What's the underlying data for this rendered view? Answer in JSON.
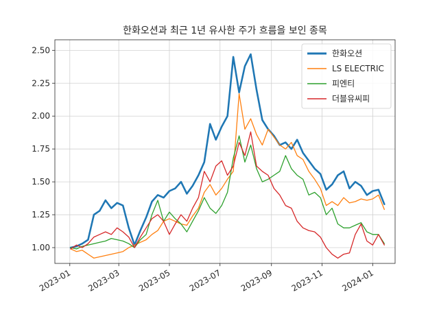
{
  "chart_data": {
    "type": "line",
    "title": "한화오션과 최근 1년 유사한 주가 흐름을 보인 종목",
    "xlabel": "",
    "ylabel": "",
    "x_ticks": [
      "2023-01",
      "2023-03",
      "2023-05",
      "2023-07",
      "2023-09",
      "2023-11",
      "2024-01"
    ],
    "y_ticks": [
      "1.00",
      "1.25",
      "1.50",
      "1.75",
      "2.00",
      "2.25",
      "2.50"
    ],
    "xlim": [
      "2022-12-14",
      "2024-01-28"
    ],
    "ylim": [
      0.88,
      2.58
    ],
    "grid": true,
    "legend_position": "top-right",
    "series": [
      {
        "name": "한화오션",
        "color": "#1f77b4",
        "linewidth": 2,
        "points": [
          [
            "2023-01-02",
            1.0
          ],
          [
            "2023-01-09",
            1.01
          ],
          [
            "2023-01-16",
            1.03
          ],
          [
            "2023-01-23",
            1.06
          ],
          [
            "2023-01-30",
            1.25
          ],
          [
            "2023-02-06",
            1.28
          ],
          [
            "2023-02-13",
            1.36
          ],
          [
            "2023-02-20",
            1.3
          ],
          [
            "2023-02-27",
            1.34
          ],
          [
            "2023-03-06",
            1.32
          ],
          [
            "2023-03-13",
            1.15
          ],
          [
            "2023-03-20",
            1.02
          ],
          [
            "2023-03-27",
            1.13
          ],
          [
            "2023-04-03",
            1.23
          ],
          [
            "2023-04-10",
            1.35
          ],
          [
            "2023-04-17",
            1.4
          ],
          [
            "2023-04-24",
            1.38
          ],
          [
            "2023-05-01",
            1.43
          ],
          [
            "2023-05-08",
            1.45
          ],
          [
            "2023-05-15",
            1.5
          ],
          [
            "2023-05-22",
            1.41
          ],
          [
            "2023-05-29",
            1.47
          ],
          [
            "2023-06-05",
            1.55
          ],
          [
            "2023-06-12",
            1.65
          ],
          [
            "2023-06-19",
            1.94
          ],
          [
            "2023-06-26",
            1.82
          ],
          [
            "2023-07-03",
            1.92
          ],
          [
            "2023-07-10",
            2.0
          ],
          [
            "2023-07-17",
            2.45
          ],
          [
            "2023-07-24",
            2.18
          ],
          [
            "2023-07-31",
            2.38
          ],
          [
            "2023-08-07",
            2.47
          ],
          [
            "2023-08-14",
            2.2
          ],
          [
            "2023-08-21",
            1.97
          ],
          [
            "2023-08-28",
            1.9
          ],
          [
            "2023-09-04",
            1.85
          ],
          [
            "2023-09-11",
            1.78
          ],
          [
            "2023-09-18",
            1.8
          ],
          [
            "2023-09-25",
            1.75
          ],
          [
            "2023-10-02",
            1.82
          ],
          [
            "2023-10-09",
            1.72
          ],
          [
            "2023-10-16",
            1.66
          ],
          [
            "2023-10-23",
            1.6
          ],
          [
            "2023-10-30",
            1.56
          ],
          [
            "2023-11-06",
            1.44
          ],
          [
            "2023-11-13",
            1.48
          ],
          [
            "2023-11-20",
            1.55
          ],
          [
            "2023-11-27",
            1.58
          ],
          [
            "2023-12-04",
            1.45
          ],
          [
            "2023-12-11",
            1.5
          ],
          [
            "2023-12-18",
            1.47
          ],
          [
            "2023-12-25",
            1.4
          ],
          [
            "2024-01-01",
            1.43
          ],
          [
            "2024-01-08",
            1.44
          ],
          [
            "2024-01-15",
            1.33
          ]
        ]
      },
      {
        "name": "LS ELECTRIC",
        "color": "#ff7f0e",
        "linewidth": 1,
        "points": [
          [
            "2023-01-02",
            0.99
          ],
          [
            "2023-01-09",
            0.97
          ],
          [
            "2023-01-16",
            0.98
          ],
          [
            "2023-01-23",
            0.95
          ],
          [
            "2023-01-30",
            0.92
          ],
          [
            "2023-02-06",
            0.93
          ],
          [
            "2023-02-13",
            0.94
          ],
          [
            "2023-02-20",
            0.95
          ],
          [
            "2023-02-27",
            0.96
          ],
          [
            "2023-03-06",
            0.97
          ],
          [
            "2023-03-13",
            1.0
          ],
          [
            "2023-03-20",
            1.02
          ],
          [
            "2023-03-27",
            1.04
          ],
          [
            "2023-04-03",
            1.06
          ],
          [
            "2023-04-10",
            1.1
          ],
          [
            "2023-04-17",
            1.13
          ],
          [
            "2023-04-24",
            1.2
          ],
          [
            "2023-05-01",
            1.22
          ],
          [
            "2023-05-08",
            1.2
          ],
          [
            "2023-05-15",
            1.18
          ],
          [
            "2023-05-22",
            1.17
          ],
          [
            "2023-05-29",
            1.24
          ],
          [
            "2023-06-05",
            1.3
          ],
          [
            "2023-06-12",
            1.42
          ],
          [
            "2023-06-19",
            1.48
          ],
          [
            "2023-06-26",
            1.4
          ],
          [
            "2023-07-03",
            1.45
          ],
          [
            "2023-07-10",
            1.52
          ],
          [
            "2023-07-17",
            1.58
          ],
          [
            "2023-07-24",
            2.17
          ],
          [
            "2023-07-31",
            1.9
          ],
          [
            "2023-08-07",
            1.98
          ],
          [
            "2023-08-14",
            1.86
          ],
          [
            "2023-08-21",
            1.78
          ],
          [
            "2023-08-28",
            1.9
          ],
          [
            "2023-09-04",
            1.84
          ],
          [
            "2023-09-11",
            1.78
          ],
          [
            "2023-09-18",
            1.75
          ],
          [
            "2023-09-25",
            1.8
          ],
          [
            "2023-10-02",
            1.7
          ],
          [
            "2023-10-09",
            1.67
          ],
          [
            "2023-10-16",
            1.58
          ],
          [
            "2023-10-23",
            1.52
          ],
          [
            "2023-10-30",
            1.45
          ],
          [
            "2023-11-06",
            1.32
          ],
          [
            "2023-11-13",
            1.35
          ],
          [
            "2023-11-20",
            1.32
          ],
          [
            "2023-11-27",
            1.38
          ],
          [
            "2023-12-04",
            1.34
          ],
          [
            "2023-12-11",
            1.35
          ],
          [
            "2023-12-18",
            1.37
          ],
          [
            "2023-12-25",
            1.36
          ],
          [
            "2024-01-01",
            1.37
          ],
          [
            "2024-01-08",
            1.4
          ],
          [
            "2024-01-15",
            1.29
          ]
        ]
      },
      {
        "name": "피엔티",
        "color": "#2ca02c",
        "linewidth": 1,
        "points": [
          [
            "2023-01-02",
            1.0
          ],
          [
            "2023-01-09",
            0.99
          ],
          [
            "2023-01-16",
            1.01
          ],
          [
            "2023-01-23",
            1.02
          ],
          [
            "2023-01-30",
            1.03
          ],
          [
            "2023-02-06",
            1.04
          ],
          [
            "2023-02-13",
            1.05
          ],
          [
            "2023-02-20",
            1.07
          ],
          [
            "2023-02-27",
            1.06
          ],
          [
            "2023-03-06",
            1.05
          ],
          [
            "2023-03-13",
            1.03
          ],
          [
            "2023-03-20",
            1.0
          ],
          [
            "2023-03-27",
            1.06
          ],
          [
            "2023-04-03",
            1.1
          ],
          [
            "2023-04-10",
            1.25
          ],
          [
            "2023-04-17",
            1.36
          ],
          [
            "2023-04-24",
            1.2
          ],
          [
            "2023-05-01",
            1.27
          ],
          [
            "2023-05-08",
            1.22
          ],
          [
            "2023-05-15",
            1.18
          ],
          [
            "2023-05-22",
            1.12
          ],
          [
            "2023-05-29",
            1.2
          ],
          [
            "2023-06-05",
            1.28
          ],
          [
            "2023-06-12",
            1.38
          ],
          [
            "2023-06-19",
            1.3
          ],
          [
            "2023-06-26",
            1.26
          ],
          [
            "2023-07-03",
            1.32
          ],
          [
            "2023-07-10",
            1.42
          ],
          [
            "2023-07-17",
            1.68
          ],
          [
            "2023-07-24",
            1.85
          ],
          [
            "2023-07-31",
            1.65
          ],
          [
            "2023-08-07",
            1.78
          ],
          [
            "2023-08-14",
            1.6
          ],
          [
            "2023-08-21",
            1.5
          ],
          [
            "2023-08-28",
            1.52
          ],
          [
            "2023-09-04",
            1.55
          ],
          [
            "2023-09-11",
            1.58
          ],
          [
            "2023-09-18",
            1.7
          ],
          [
            "2023-09-25",
            1.6
          ],
          [
            "2023-10-02",
            1.55
          ],
          [
            "2023-10-09",
            1.52
          ],
          [
            "2023-10-16",
            1.4
          ],
          [
            "2023-10-23",
            1.42
          ],
          [
            "2023-10-30",
            1.38
          ],
          [
            "2023-11-06",
            1.25
          ],
          [
            "2023-11-13",
            1.3
          ],
          [
            "2023-11-20",
            1.18
          ],
          [
            "2023-11-27",
            1.15
          ],
          [
            "2023-12-04",
            1.15
          ],
          [
            "2023-12-11",
            1.17
          ],
          [
            "2023-12-18",
            1.19
          ],
          [
            "2023-12-25",
            1.12
          ],
          [
            "2024-01-01",
            1.1
          ],
          [
            "2024-01-08",
            1.1
          ],
          [
            "2024-01-15",
            1.03
          ]
        ]
      },
      {
        "name": "더블유씨피",
        "color": "#d62728",
        "linewidth": 1,
        "points": [
          [
            "2023-01-02",
            0.99
          ],
          [
            "2023-01-09",
            1.02
          ],
          [
            "2023-01-16",
            1.0
          ],
          [
            "2023-01-23",
            1.03
          ],
          [
            "2023-01-30",
            1.08
          ],
          [
            "2023-02-06",
            1.1
          ],
          [
            "2023-02-13",
            1.12
          ],
          [
            "2023-02-20",
            1.1
          ],
          [
            "2023-02-27",
            1.15
          ],
          [
            "2023-03-06",
            1.12
          ],
          [
            "2023-03-13",
            1.08
          ],
          [
            "2023-03-20",
            1.0
          ],
          [
            "2023-03-27",
            1.08
          ],
          [
            "2023-04-03",
            1.15
          ],
          [
            "2023-04-10",
            1.22
          ],
          [
            "2023-04-17",
            1.25
          ],
          [
            "2023-04-24",
            1.2
          ],
          [
            "2023-05-01",
            1.1
          ],
          [
            "2023-05-08",
            1.18
          ],
          [
            "2023-05-15",
            1.25
          ],
          [
            "2023-05-22",
            1.2
          ],
          [
            "2023-05-29",
            1.3
          ],
          [
            "2023-06-05",
            1.38
          ],
          [
            "2023-06-12",
            1.58
          ],
          [
            "2023-06-19",
            1.5
          ],
          [
            "2023-06-26",
            1.62
          ],
          [
            "2023-07-03",
            1.66
          ],
          [
            "2023-07-10",
            1.55
          ],
          [
            "2023-07-17",
            1.62
          ],
          [
            "2023-07-24",
            1.8
          ],
          [
            "2023-07-31",
            1.7
          ],
          [
            "2023-08-07",
            1.88
          ],
          [
            "2023-08-14",
            1.62
          ],
          [
            "2023-08-21",
            1.58
          ],
          [
            "2023-08-28",
            1.55
          ],
          [
            "2023-09-04",
            1.45
          ],
          [
            "2023-09-11",
            1.4
          ],
          [
            "2023-09-18",
            1.32
          ],
          [
            "2023-09-25",
            1.3
          ],
          [
            "2023-10-02",
            1.2
          ],
          [
            "2023-10-09",
            1.15
          ],
          [
            "2023-10-16",
            1.13
          ],
          [
            "2023-10-23",
            1.12
          ],
          [
            "2023-10-30",
            1.08
          ],
          [
            "2023-11-06",
            1.0
          ],
          [
            "2023-11-13",
            0.95
          ],
          [
            "2023-11-20",
            0.92
          ],
          [
            "2023-11-27",
            0.95
          ],
          [
            "2023-12-04",
            0.96
          ],
          [
            "2023-12-11",
            1.1
          ],
          [
            "2023-12-18",
            1.18
          ],
          [
            "2023-12-25",
            1.05
          ],
          [
            "2024-01-01",
            1.02
          ],
          [
            "2024-01-08",
            1.1
          ],
          [
            "2024-01-15",
            1.02
          ]
        ]
      }
    ]
  }
}
